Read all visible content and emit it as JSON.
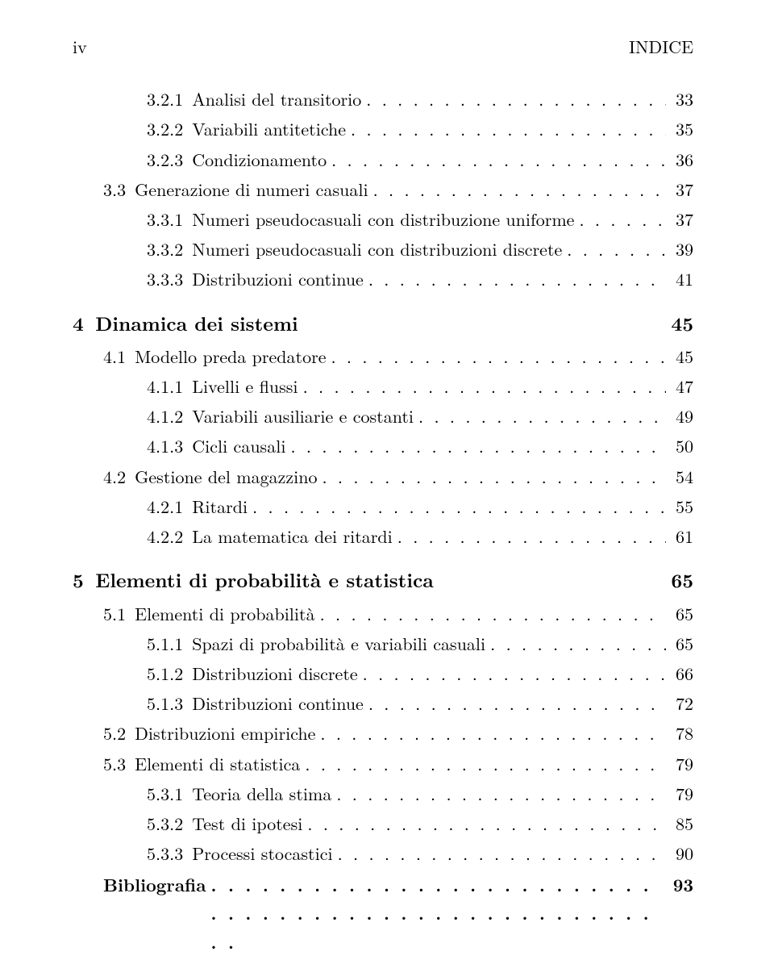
{
  "header": {
    "left": "iv",
    "right": "INDICE"
  },
  "entries": [
    {
      "type": "sub",
      "indent": 2,
      "num": "3.2.1",
      "title": "Analisi del transitorio",
      "page": "33"
    },
    {
      "type": "sub",
      "indent": 2,
      "num": "3.2.2",
      "title": "Variabili antitetiche",
      "page": "35"
    },
    {
      "type": "sub",
      "indent": 2,
      "num": "3.2.3",
      "title": "Condizionamento",
      "page": "36"
    },
    {
      "type": "sub",
      "indent": 1,
      "num": "3.3",
      "title": "Generazione di numeri casuali",
      "page": "37"
    },
    {
      "type": "sub",
      "indent": 2,
      "num": "3.3.1",
      "title": "Numeri pseudocasuali con distribuzione uniforme",
      "page": "37"
    },
    {
      "type": "sub",
      "indent": 2,
      "num": "3.3.2",
      "title": "Numeri pseudocasuali con distribuzioni discrete",
      "page": "39"
    },
    {
      "type": "sub",
      "indent": 2,
      "num": "3.3.3",
      "title": "Distribuzioni continue",
      "page": "41"
    },
    {
      "type": "chapter",
      "num": "4",
      "title": "Dinamica dei sistemi",
      "page": "45"
    },
    {
      "type": "sub",
      "indent": 1,
      "num": "4.1",
      "title": "Modello preda predatore",
      "page": "45"
    },
    {
      "type": "sub",
      "indent": 2,
      "num": "4.1.1",
      "title": "Livelli e flussi",
      "page": "47"
    },
    {
      "type": "sub",
      "indent": 2,
      "num": "4.1.2",
      "title": "Variabili ausiliarie e costanti",
      "page": "49"
    },
    {
      "type": "sub",
      "indent": 2,
      "num": "4.1.3",
      "title": "Cicli causali",
      "page": "50"
    },
    {
      "type": "sub",
      "indent": 1,
      "num": "4.2",
      "title": "Gestione del magazzino",
      "page": "54"
    },
    {
      "type": "sub",
      "indent": 2,
      "num": "4.2.1",
      "title": "Ritardi",
      "page": "55"
    },
    {
      "type": "sub",
      "indent": 2,
      "num": "4.2.2",
      "title": "La matematica dei ritardi",
      "page": "61"
    },
    {
      "type": "chapter",
      "num": "5",
      "title": "Elementi di probabilità e statistica",
      "page": "65"
    },
    {
      "type": "sub",
      "indent": 1,
      "num": "5.1",
      "title": "Elementi di probabilità",
      "page": "65"
    },
    {
      "type": "sub",
      "indent": 2,
      "num": "5.1.1",
      "title": "Spazi di probabilità e variabili casuali",
      "page": "65"
    },
    {
      "type": "sub",
      "indent": 2,
      "num": "5.1.2",
      "title": "Distribuzioni discrete",
      "page": "66"
    },
    {
      "type": "sub",
      "indent": 2,
      "num": "5.1.3",
      "title": "Distribuzioni continue",
      "page": "72"
    },
    {
      "type": "sub",
      "indent": 1,
      "num": "5.2",
      "title": "Distribuzioni empiriche",
      "page": "78"
    },
    {
      "type": "sub",
      "indent": 1,
      "num": "5.3",
      "title": "Elementi di statistica",
      "page": "79"
    },
    {
      "type": "sub",
      "indent": 2,
      "num": "5.3.1",
      "title": "Teoria della stima",
      "page": "79"
    },
    {
      "type": "sub",
      "indent": 2,
      "num": "5.3.2",
      "title": "Test di ipotesi",
      "page": "85"
    },
    {
      "type": "sub",
      "indent": 2,
      "num": "5.3.3",
      "title": "Processi stocastici",
      "page": "90"
    },
    {
      "type": "bib",
      "title": "Bibliografia",
      "page": "93"
    }
  ]
}
